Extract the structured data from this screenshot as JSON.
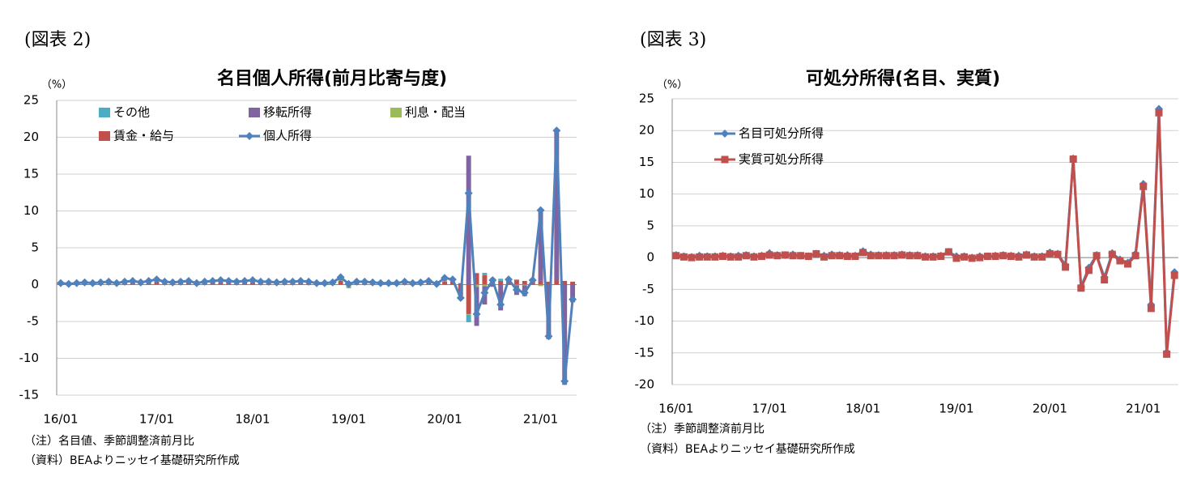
{
  "chart_data": [
    {
      "type": "bar",
      "figure_label": "(図表 2)",
      "title": "名目個人所得(前月比寄与度)",
      "y_unit": "（%）",
      "notes": [
        "（注）名目値、季節調整済前月比",
        "（資料）BEAよりニッセイ基礎研究所作成"
      ],
      "categories": [
        "16/01",
        null,
        null,
        null,
        null,
        null,
        null,
        null,
        null,
        null,
        null,
        null,
        "17/01",
        null,
        null,
        null,
        null,
        null,
        null,
        null,
        null,
        null,
        null,
        null,
        "18/01",
        null,
        null,
        null,
        null,
        null,
        null,
        null,
        null,
        null,
        null,
        null,
        "19/01",
        null,
        null,
        null,
        null,
        null,
        null,
        null,
        null,
        null,
        null,
        null,
        "20/01",
        null,
        null,
        null,
        null,
        null,
        null,
        null,
        null,
        null,
        null,
        null,
        "21/01",
        null,
        null,
        null,
        null
      ],
      "ylim": [
        -15,
        25
      ],
      "yticks": [
        -15,
        -10,
        -5,
        0,
        5,
        10,
        15,
        20,
        25
      ],
      "grid": true,
      "series": [
        {
          "name": "その他",
          "type": "bar",
          "color": "#4bacc6",
          "values": [
            0,
            0,
            0,
            0,
            0,
            0,
            0,
            0,
            0,
            0,
            0,
            0,
            0,
            0,
            0,
            0,
            0,
            0,
            0,
            0,
            0,
            0,
            0,
            0,
            0,
            0,
            0,
            0,
            0,
            0,
            0,
            0,
            0,
            0,
            0,
            0,
            0,
            0,
            0,
            0,
            0,
            0,
            0,
            0,
            0,
            0,
            0,
            0,
            0.0,
            0.1,
            -0.3,
            -1.0,
            0.1,
            0.3,
            0.2,
            0.3,
            0.0,
            0.1,
            -0.1,
            0.0,
            0.0,
            0.0,
            0.0,
            0.0,
            0.0
          ]
        },
        {
          "name": "移転所得",
          "type": "bar",
          "color": "#8064a2",
          "values": [
            0.1,
            0.1,
            0.1,
            0.1,
            0.1,
            0.1,
            0.1,
            0.1,
            0.1,
            0.1,
            0.1,
            0.1,
            0.1,
            0.1,
            0.1,
            0.1,
            0.1,
            0.1,
            0.1,
            0.1,
            0.1,
            0.1,
            0.1,
            0.1,
            0.1,
            0.1,
            0.1,
            0.1,
            0.1,
            0.1,
            0.1,
            0.1,
            0.1,
            0.1,
            0.1,
            0.1,
            0.1,
            0.1,
            0.1,
            0.1,
            0.1,
            0.1,
            0.1,
            0.1,
            0.1,
            0.1,
            0.1,
            0.1,
            0.3,
            0.1,
            0.2,
            17.5,
            -5.3,
            -2.5,
            -0.3,
            -3.5,
            0.2,
            -1.3,
            -1.4,
            0.1,
            9.8,
            -7.4,
            20.3,
            -13.6,
            -2.4
          ]
        },
        {
          "name": "利息・配当",
          "type": "bar",
          "color": "#9bbb59",
          "values": [
            0.1,
            0.1,
            0.1,
            0.1,
            0.1,
            0.1,
            0.1,
            0.1,
            0.1,
            0.1,
            0.1,
            0.1,
            0.1,
            0.1,
            0.1,
            0.1,
            0.1,
            0.1,
            0.1,
            0.1,
            0.1,
            0.1,
            0.1,
            0.1,
            0.1,
            0.1,
            0.1,
            0.1,
            0.1,
            0.1,
            0.1,
            0.1,
            0.1,
            0.1,
            0.1,
            0.1,
            -0.5,
            0.1,
            0.1,
            0.1,
            0.1,
            0.1,
            0.1,
            0.1,
            0.1,
            0.1,
            0.1,
            0.1,
            0.2,
            0.1,
            -0.2,
            -0.1,
            -0.3,
            -0.2,
            0.0,
            0.0,
            0.0,
            -0.1,
            -0.1,
            0.0,
            -0.2,
            0.0,
            0.0,
            0.0,
            0.0
          ]
        },
        {
          "name": "賃金・給与",
          "type": "bar",
          "color": "#c0504d",
          "values": [
            0.2,
            0.1,
            0.2,
            0.2,
            0.1,
            0.2,
            0.3,
            0.1,
            0.2,
            0.3,
            0.2,
            0.3,
            0.4,
            0.2,
            0.2,
            0.2,
            0.3,
            0.1,
            0.2,
            0.3,
            0.3,
            0.3,
            0.2,
            0.3,
            0.3,
            0.2,
            0.2,
            0.2,
            0.2,
            0.2,
            0.3,
            0.2,
            0.1,
            0.1,
            0.2,
            0.5,
            0.2,
            0.2,
            0.2,
            0.2,
            0.1,
            0.1,
            0.1,
            0.2,
            0.1,
            0.2,
            0.3,
            0.1,
            0.4,
            0.4,
            -1.5,
            -4.0,
            1.5,
            1.3,
            0.7,
            0.5,
            0.5,
            0.6,
            0.5,
            0.5,
            0.5,
            0.4,
            0.6,
            0.5,
            0.4
          ]
        },
        {
          "name": "個人所得",
          "type": "line",
          "marker": "diamond",
          "color": "#4f81bd",
          "values": [
            0.2,
            0.1,
            0.2,
            0.3,
            0.2,
            0.3,
            0.4,
            0.2,
            0.4,
            0.5,
            0.3,
            0.5,
            0.7,
            0.4,
            0.3,
            0.4,
            0.5,
            0.2,
            0.4,
            0.5,
            0.6,
            0.5,
            0.4,
            0.5,
            0.6,
            0.4,
            0.4,
            0.3,
            0.4,
            0.4,
            0.5,
            0.4,
            0.2,
            0.2,
            0.3,
            1.0,
            0.1,
            0.4,
            0.4,
            0.3,
            0.2,
            0.2,
            0.2,
            0.4,
            0.2,
            0.3,
            0.5,
            0.1,
            0.9,
            0.7,
            -1.8,
            12.4,
            -4.0,
            -1.1,
            0.6,
            -2.7,
            0.7,
            -0.7,
            -1.1,
            0.6,
            10.1,
            -7.0,
            20.9,
            -13.1,
            -2.0
          ]
        }
      ]
    },
    {
      "type": "line",
      "figure_label": "(図表 3)",
      "title": "可処分所得(名目、実質)",
      "y_unit": "（%）",
      "notes": [
        "（注）季節調整済前月比",
        "（資料）BEAよりニッセイ基礎研究所作成"
      ],
      "categories": [
        "16/01",
        null,
        null,
        null,
        null,
        null,
        null,
        null,
        null,
        null,
        null,
        null,
        "17/01",
        null,
        null,
        null,
        null,
        null,
        null,
        null,
        null,
        null,
        null,
        null,
        "18/01",
        null,
        null,
        null,
        null,
        null,
        null,
        null,
        null,
        null,
        null,
        null,
        "19/01",
        null,
        null,
        null,
        null,
        null,
        null,
        null,
        null,
        null,
        null,
        null,
        "20/01",
        null,
        null,
        null,
        null,
        null,
        null,
        null,
        null,
        null,
        null,
        null,
        "21/01",
        null,
        null,
        null,
        null
      ],
      "ylim": [
        -20,
        25
      ],
      "yticks": [
        -20,
        -15,
        -10,
        -5,
        0,
        5,
        10,
        15,
        20,
        25
      ],
      "grid": true,
      "series": [
        {
          "name": "名目可処分所得",
          "type": "line",
          "marker": "diamond",
          "color": "#4f81bd",
          "values": [
            0.4,
            0.2,
            0.1,
            0.3,
            0.2,
            0.2,
            0.3,
            0.2,
            0.3,
            0.4,
            0.2,
            0.3,
            0.7,
            0.4,
            0.4,
            0.5,
            0.3,
            0.2,
            0.6,
            0.3,
            0.5,
            0.4,
            0.4,
            0.3,
            1.0,
            0.5,
            0.4,
            0.4,
            0.4,
            0.5,
            0.4,
            0.4,
            0.2,
            0.2,
            0.3,
            0.9,
            0.2,
            0.2,
            0.0,
            0.2,
            0.2,
            0.3,
            0.4,
            0.3,
            0.3,
            0.5,
            0.2,
            0.2,
            0.8,
            0.6,
            -1.2,
            15.6,
            -4.6,
            -1.6,
            0.4,
            -3.1,
            0.7,
            -0.3,
            -0.8,
            0.6,
            11.6,
            -7.4,
            23.4,
            -14.9,
            -2.3
          ]
        },
        {
          "name": "実質可処分所得",
          "type": "line",
          "marker": "square",
          "color": "#c0504d",
          "values": [
            0.3,
            0.1,
            0.0,
            0.1,
            0.1,
            0.1,
            0.2,
            0.1,
            0.1,
            0.3,
            0.1,
            0.2,
            0.4,
            0.3,
            0.4,
            0.3,
            0.3,
            0.2,
            0.6,
            0.1,
            0.3,
            0.3,
            0.2,
            0.2,
            0.8,
            0.3,
            0.3,
            0.3,
            0.3,
            0.4,
            0.3,
            0.3,
            0.1,
            0.1,
            0.2,
            0.9,
            -0.1,
            0.1,
            -0.1,
            0.0,
            0.2,
            0.2,
            0.3,
            0.2,
            0.1,
            0.4,
            0.1,
            0.1,
            0.6,
            0.5,
            -1.5,
            15.5,
            -4.8,
            -2.0,
            0.3,
            -3.5,
            0.5,
            -0.5,
            -1.0,
            0.3,
            11.2,
            -8.0,
            22.8,
            -15.2,
            -2.8
          ]
        }
      ]
    }
  ]
}
